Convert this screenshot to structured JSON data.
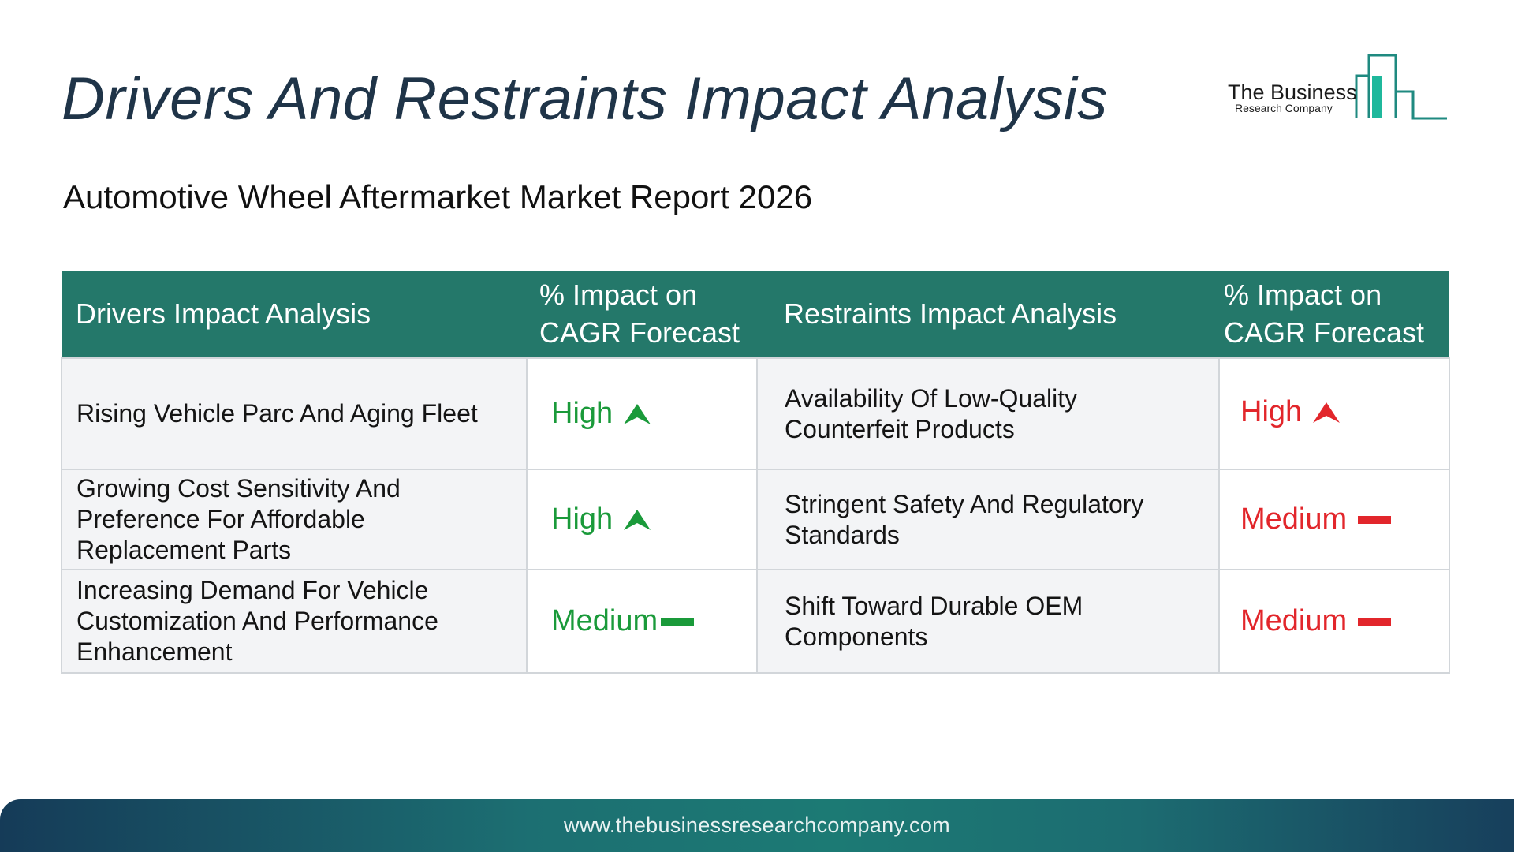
{
  "header": {
    "title": "Drivers And Restraints Impact Analysis",
    "subtitle": "Automotive Wheel Aftermarket Market Report 2026"
  },
  "logo": {
    "line1": "The Business",
    "line2": "Research Company",
    "color": "#1f8a80"
  },
  "table": {
    "headers": {
      "drivers": "Drivers Impact Analysis",
      "drivers_impact": "% Impact on CAGR Forecast",
      "restraints": "Restraints Impact Analysis",
      "restraints_impact": "% Impact on CAGR Forecast"
    },
    "rows": [
      {
        "driver": "Rising Vehicle Parc And Aging Fleet",
        "driver_impact": "High",
        "driver_icon": "up-arrow-icon",
        "restraint": "Availability Of Low-Quality Counterfeit Products",
        "restraint_impact": "High",
        "restraint_icon": "up-arrow-icon"
      },
      {
        "driver": "Growing Cost Sensitivity And Preference For Affordable Replacement Parts",
        "driver_impact": "High",
        "driver_icon": "up-arrow-icon",
        "restraint": "Stringent Safety And Regulatory Standards",
        "restraint_impact": "Medium",
        "restraint_icon": "dash-icon"
      },
      {
        "driver": "Increasing Demand For Vehicle Customization And Performance Enhancement",
        "driver_impact": "Medium",
        "driver_icon": "dash-icon",
        "restraint": "Shift Toward Durable OEM Components",
        "restraint_impact": "Medium",
        "restraint_icon": "dash-icon"
      }
    ],
    "colors": {
      "header_bg": "#24786a",
      "driver_impact": "#1a9a3a",
      "restraint_impact": "#e2262b"
    }
  },
  "footer": {
    "url": "www.thebusinessresearchcompany.com"
  }
}
